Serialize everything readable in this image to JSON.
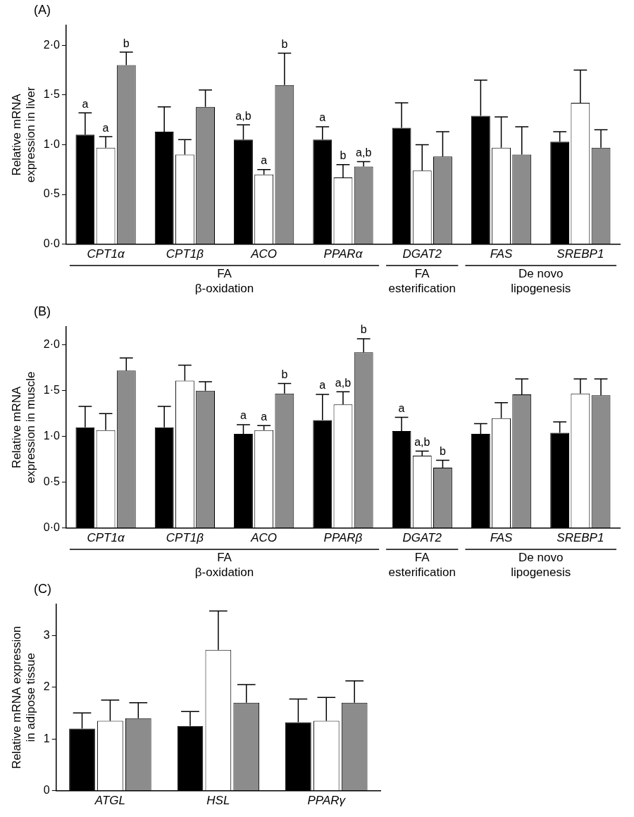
{
  "chart_data": [
    {
      "type": "bar",
      "title": "(A)",
      "y_label": [
        "Relative mRNA",
        "expression in liver"
      ],
      "categories": [
        "CPT1α",
        "CPT1β",
        "ACO",
        "PPARα",
        "DGAT2",
        "FAS",
        "SREBP1"
      ],
      "series": [
        {
          "color": "#000000",
          "values": [
            1.1,
            1.13,
            1.05,
            1.05,
            1.17,
            1.29,
            1.03
          ],
          "errors": [
            0.22,
            0.25,
            0.15,
            0.13,
            0.25,
            0.36,
            0.1
          ],
          "letters": [
            "a",
            null,
            "a,b",
            "a",
            null,
            null,
            null
          ]
        },
        {
          "color": "#ffffff",
          "values": [
            0.97,
            0.9,
            0.7,
            0.67,
            0.74,
            0.97,
            1.42
          ],
          "errors": [
            0.11,
            0.15,
            0.05,
            0.13,
            0.26,
            0.31,
            0.33
          ],
          "letters": [
            "a",
            null,
            "a",
            "b",
            null,
            null,
            null
          ]
        },
        {
          "color": "#8c8c8c",
          "values": [
            1.8,
            1.38,
            1.6,
            0.78,
            0.88,
            0.9,
            0.97
          ],
          "errors": [
            0.13,
            0.17,
            0.32,
            0.05,
            0.25,
            0.28,
            0.18
          ],
          "letters": [
            "b",
            null,
            "b",
            "a,b",
            null,
            null,
            null
          ]
        }
      ],
      "groups": [
        {
          "label": [
            "FA",
            "β-oxidation"
          ],
          "categories": [
            "CPT1α",
            "CPT1β",
            "ACO",
            "PPARα"
          ]
        },
        {
          "label": [
            "FA",
            "esterification"
          ],
          "categories": [
            "DGAT2"
          ]
        },
        {
          "label": [
            "De novo",
            "lipogenesis"
          ],
          "categories": [
            "FAS",
            "SREBP1"
          ]
        }
      ],
      "ylim": [
        0,
        2.2
      ],
      "yticks": [
        {
          "value": 0,
          "label": "0·0"
        },
        {
          "value": 0.5,
          "label": "0·5"
        },
        {
          "value": 1,
          "label": "1·0"
        },
        {
          "value": 1.5,
          "label": "1·5"
        },
        {
          "value": 2,
          "label": "2·0"
        }
      ],
      "grid": false
    },
    {
      "type": "bar",
      "title": "(B)",
      "y_label": [
        "Relative mRNA",
        "expression in muscle"
      ],
      "categories": [
        "CPT1α",
        "CPT1β",
        "ACO",
        "PPARβ",
        "DGAT2",
        "FAS",
        "SREBP1"
      ],
      "series": [
        {
          "color": "#000000",
          "values": [
            1.1,
            1.1,
            1.03,
            1.18,
            1.06,
            1.03,
            1.04
          ],
          "errors": [
            0.23,
            0.23,
            0.1,
            0.28,
            0.15,
            0.11,
            0.12
          ],
          "letters": [
            null,
            null,
            "a",
            "a",
            "a",
            null,
            null
          ]
        },
        {
          "color": "#ffffff",
          "values": [
            1.07,
            1.61,
            1.07,
            1.35,
            0.79,
            1.2,
            1.47
          ],
          "errors": [
            0.18,
            0.17,
            0.05,
            0.14,
            0.05,
            0.17,
            0.16
          ],
          "letters": [
            null,
            null,
            "a",
            "a,b",
            "a,b",
            null,
            null
          ]
        },
        {
          "color": "#8c8c8c",
          "values": [
            1.72,
            1.5,
            1.47,
            1.92,
            0.66,
            1.46,
            1.45
          ],
          "errors": [
            0.14,
            0.1,
            0.11,
            0.15,
            0.08,
            0.17,
            0.18
          ],
          "letters": [
            null,
            null,
            "b",
            "b",
            "b",
            null,
            null
          ]
        }
      ],
      "groups": [
        {
          "label": [
            "FA",
            "β-oxidation"
          ],
          "categories": [
            "CPT1α",
            "CPT1β",
            "ACO",
            "PPARβ"
          ]
        },
        {
          "label": [
            "FA",
            "esterification"
          ],
          "categories": [
            "DGAT2"
          ]
        },
        {
          "label": [
            "De novo",
            "lipogenesis"
          ],
          "categories": [
            "FAS",
            "SREBP1"
          ]
        }
      ],
      "ylim": [
        0,
        2.2
      ],
      "yticks": [
        {
          "value": 0,
          "label": "0·0"
        },
        {
          "value": 0.5,
          "label": "0·5"
        },
        {
          "value": 1,
          "label": "1·0"
        },
        {
          "value": 1.5,
          "label": "1·5"
        },
        {
          "value": 2,
          "label": "2·0"
        }
      ],
      "grid": false
    },
    {
      "type": "bar",
      "title": "(C)",
      "y_label": [
        "Relative mRNA expression",
        "in adipose tissue"
      ],
      "categories": [
        "ATGL",
        "HSL",
        "PPARγ"
      ],
      "series": [
        {
          "color": "#000000",
          "values": [
            1.2,
            1.25,
            1.32
          ],
          "errors": [
            0.3,
            0.28,
            0.45
          ]
        },
        {
          "color": "#ffffff",
          "values": [
            1.35,
            2.72,
            1.35
          ],
          "errors": [
            0.4,
            0.75,
            0.45
          ]
        },
        {
          "color": "#8c8c8c",
          "values": [
            1.4,
            1.7,
            1.7
          ],
          "errors": [
            0.3,
            0.35,
            0.42
          ]
        }
      ],
      "ylim": [
        0,
        3.6
      ],
      "yticks": [
        0,
        1,
        2,
        3
      ],
      "grid": false
    }
  ]
}
